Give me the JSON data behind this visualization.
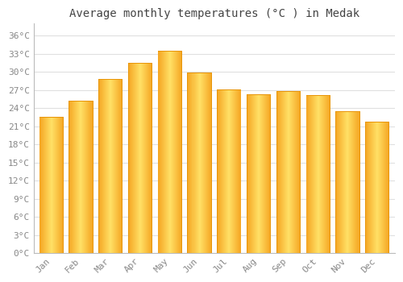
{
  "title": "Average monthly temperatures (°C ) in Medak",
  "months": [
    "Jan",
    "Feb",
    "Mar",
    "Apr",
    "May",
    "Jun",
    "Jul",
    "Aug",
    "Sep",
    "Oct",
    "Nov",
    "Dec"
  ],
  "temperatures": [
    22.5,
    25.2,
    28.8,
    31.5,
    33.5,
    29.9,
    27.1,
    26.3,
    26.8,
    26.1,
    23.5,
    21.8
  ],
  "bar_color_left": "#F5A623",
  "bar_color_center": "#FFE066",
  "bar_color_right": "#F5A623",
  "bar_edge_color": "#E8960A",
  "background_color": "#ffffff",
  "grid_color": "#e0e0e0",
  "yticks": [
    0,
    3,
    6,
    9,
    12,
    15,
    18,
    21,
    24,
    27,
    30,
    33,
    36
  ],
  "ylim": [
    0,
    38
  ],
  "title_fontsize": 10,
  "tick_fontsize": 8,
  "tick_color": "#888888",
  "bar_width": 0.82
}
